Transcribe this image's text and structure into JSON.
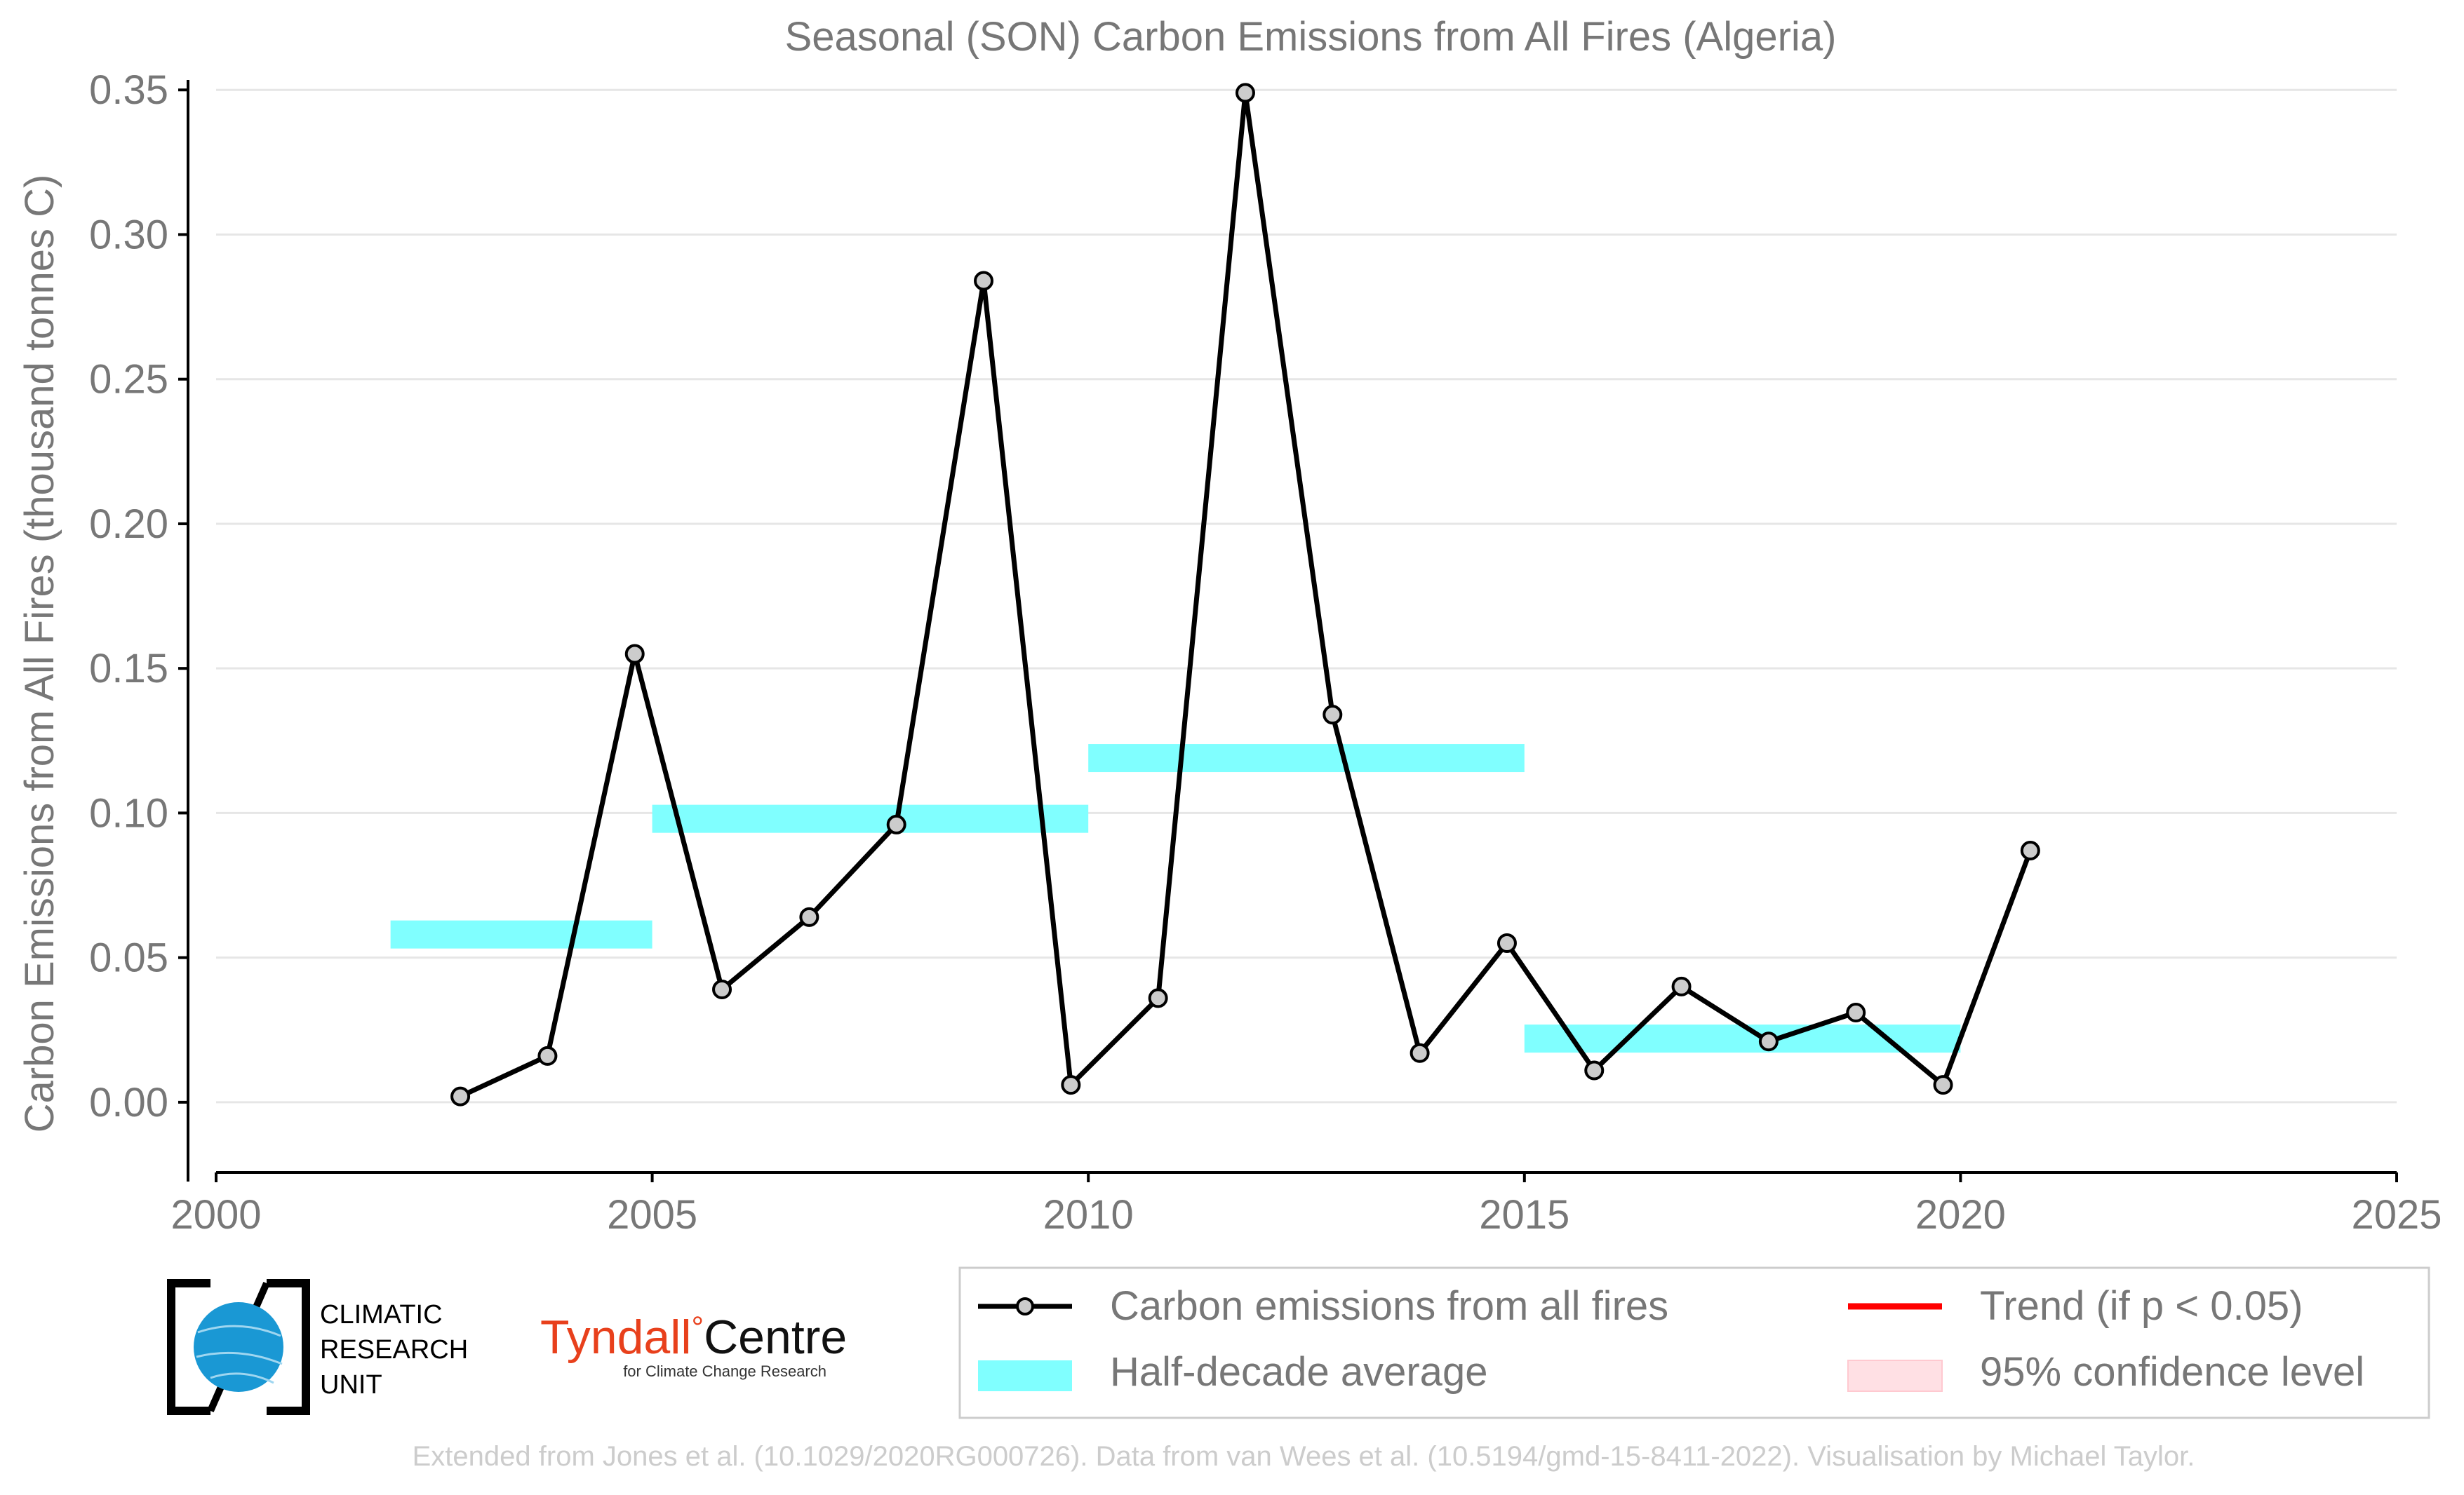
{
  "chart_data": {
    "type": "line",
    "title": "Seasonal (SON) Carbon Emissions from All Fires (Algeria)",
    "xlabel": "",
    "ylabel": "Carbon Emissions from All Fires (thousand tonnes C)",
    "xlim": [
      2000,
      2025
    ],
    "ylim": [
      -0.025,
      0.352
    ],
    "x_ticks": [
      2000,
      2005,
      2010,
      2015,
      2020,
      2025
    ],
    "x_tick_labels": [
      "2000",
      "2005",
      "2010",
      "2015",
      "2020",
      "2025"
    ],
    "y_ticks": [
      0.0,
      0.05,
      0.1,
      0.15,
      0.2,
      0.25,
      0.3,
      0.35
    ],
    "y_tick_labels": [
      "0.00",
      "0.05",
      "0.10",
      "0.15",
      "0.20",
      "0.25",
      "0.30",
      "0.35"
    ],
    "grid": "horizontal",
    "legend_position": "bottom-right, below plot",
    "series": [
      {
        "name": "Carbon emissions from all fires",
        "style": "line-with-markers",
        "color": "#000000",
        "marker_fill": "#cccccc",
        "x": [
          2002.8,
          2003.8,
          2004.8,
          2005.8,
          2006.8,
          2007.8,
          2008.8,
          2009.8,
          2010.8,
          2011.8,
          2012.8,
          2013.8,
          2014.8,
          2015.8,
          2016.8,
          2017.8,
          2018.8,
          2019.8,
          2020.8
        ],
        "values": [
          0.002,
          0.016,
          0.155,
          0.039,
          0.064,
          0.096,
          0.284,
          0.006,
          0.036,
          0.349,
          0.134,
          0.017,
          0.055,
          0.011,
          0.04,
          0.021,
          0.031,
          0.006,
          0.087
        ]
      },
      {
        "name": "Half-decade average",
        "style": "horizontal-bars",
        "color": "#80ffff",
        "segments": [
          {
            "x_start": 2002,
            "x_end": 2005,
            "value": 0.058
          },
          {
            "x_start": 2005,
            "x_end": 2010,
            "value": 0.098
          },
          {
            "x_start": 2010,
            "x_end": 2015,
            "value": 0.119
          },
          {
            "x_start": 2015,
            "x_end": 2020,
            "value": 0.022
          }
        ]
      }
    ],
    "legend": [
      {
        "label": "Carbon emissions from all fires",
        "kind": "line-marker",
        "color": "#000000"
      },
      {
        "label": "Trend (if p < 0.05)",
        "kind": "line",
        "color": "#ff0000"
      },
      {
        "label": "Half-decade average",
        "kind": "patch",
        "color": "#80ffff"
      },
      {
        "label": "95% confidence level",
        "kind": "patch",
        "color": "#ffe0e4"
      }
    ]
  },
  "logos": {
    "cru": {
      "line1": "CLIMATIC",
      "line2": "RESEARCH",
      "line3": "UNIT"
    },
    "tyndall": {
      "name_a": "Tyndall",
      "deg": "°",
      "name_b": "Centre",
      "sub": "for Climate Change Research",
      "color": "#e8401c"
    }
  },
  "credit": "Extended from Jones et al. (10.1029/2020RG000726). Data from van Wees et al. (10.5194/gmd-15-8411-2022). Visualisation by Michael Taylor.",
  "colors": {
    "axis_text": "#777777",
    "grid": "#e6e6e6",
    "credit": "#cccccc"
  }
}
